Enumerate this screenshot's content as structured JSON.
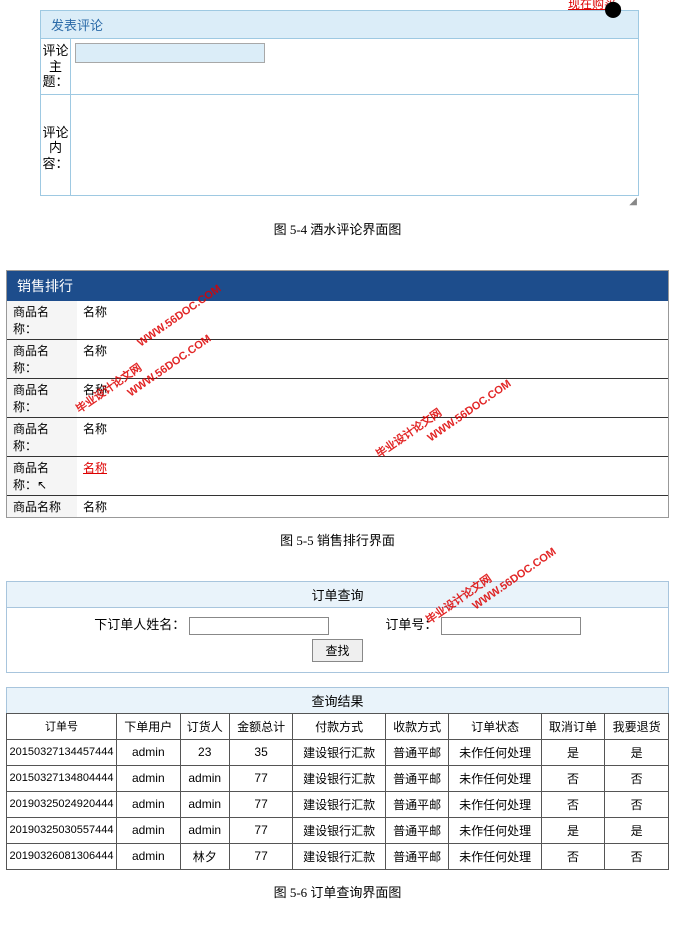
{
  "fig54": {
    "buy_now": "现在购买",
    "panel_title": "发表评论",
    "subject_label": "评论主题：",
    "content_label": "评论内容：",
    "caption": "图 5-4 酒水评论界面图"
  },
  "fig55": {
    "header": "销售排行",
    "label": "商品名称：",
    "label_last": "商品名称",
    "rows": [
      {
        "value": "名称",
        "hot": false
      },
      {
        "value": "名称",
        "hot": false
      },
      {
        "value": "名称",
        "hot": false
      },
      {
        "value": "名称",
        "hot": false
      },
      {
        "value": "名称",
        "hot": true
      },
      {
        "value": "名称",
        "hot": false
      }
    ],
    "caption": "图 5-5 销售排行界面",
    "watermark1": "毕业设计论文网",
    "watermark2": "WWW.56DOC.COM"
  },
  "fig56": {
    "query_title": "订单查询",
    "name_label": "下订单人姓名：",
    "orderno_label": "订单号：",
    "search_btn": "查找",
    "results_title": "查询结果",
    "columns": [
      "订单号",
      "下单用户",
      "订货人",
      "金额总计",
      "付款方式",
      "收款方式",
      "订单状态",
      "取消订单",
      "我要退货"
    ],
    "rows": [
      [
        "20150327134457444",
        "admin",
        "23",
        "35",
        "建设银行汇款",
        "普通平邮",
        "未作任何处理",
        "是",
        "是"
      ],
      [
        "20150327134804444",
        "admin",
        "admin",
        "77",
        "建设银行汇款",
        "普通平邮",
        "未作任何处理",
        "否",
        "否"
      ],
      [
        "20190325024920444",
        "admin",
        "admin",
        "77",
        "建设银行汇款",
        "普通平邮",
        "未作任何处理",
        "否",
        "否"
      ],
      [
        "20190325030557444",
        "admin",
        "admin",
        "77",
        "建设银行汇款",
        "普通平邮",
        "未作任何处理",
        "是",
        "是"
      ],
      [
        "20190326081306444",
        "admin",
        "林夕",
        "77",
        "建设银行汇款",
        "普通平邮",
        "未作任何处理",
        "否",
        "否"
      ]
    ],
    "caption": "图 5-6 订单查询界面图"
  },
  "colors": {
    "header_blue": "#1d4d8c",
    "light_blue": "#dbedf8",
    "border_blue": "#9ec9e2",
    "link_red": "#d00"
  }
}
